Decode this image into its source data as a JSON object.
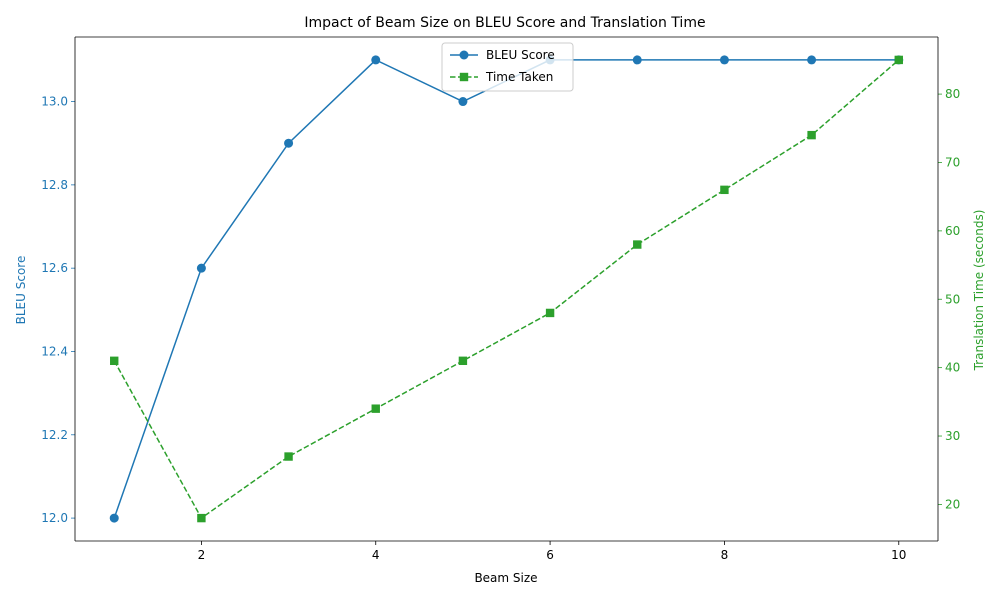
{
  "chart_data": {
    "type": "line",
    "title": "Impact of Beam Size on BLEU Score and Translation Time",
    "xlabel": "Beam Size",
    "ylabel_left": "BLEU Score",
    "ylabel_right": "Translation Time (seconds)",
    "x": [
      1,
      2,
      3,
      4,
      5,
      6,
      7,
      8,
      9,
      10
    ],
    "x_ticks": [
      2,
      4,
      6,
      8,
      10
    ],
    "xlim": [
      0.55,
      10.45
    ],
    "ylim_left": [
      11.945,
      13.155
    ],
    "ylim_right": [
      14.65,
      88.35
    ],
    "y_ticks_left": [
      12.0,
      12.2,
      12.4,
      12.6,
      12.8,
      13.0
    ],
    "y_ticks_right": [
      20,
      30,
      40,
      50,
      60,
      70,
      80
    ],
    "grid": false,
    "legend_position": "top-center",
    "series": [
      {
        "name": "BLEU Score",
        "axis": "left",
        "color": "#1f77b4",
        "marker": "circle",
        "line_style": "solid",
        "values": [
          12.0,
          12.6,
          12.9,
          13.1,
          13.0,
          13.1,
          13.1,
          13.1,
          13.1,
          13.1
        ]
      },
      {
        "name": "Time Taken",
        "axis": "right",
        "color": "#2ca02c",
        "marker": "square",
        "line_style": "dashed",
        "values": [
          41,
          18,
          27,
          34,
          41,
          48,
          58,
          66,
          74,
          85
        ]
      }
    ],
    "left_axis_color": "#1f77b4",
    "right_axis_color": "#2ca02c"
  }
}
